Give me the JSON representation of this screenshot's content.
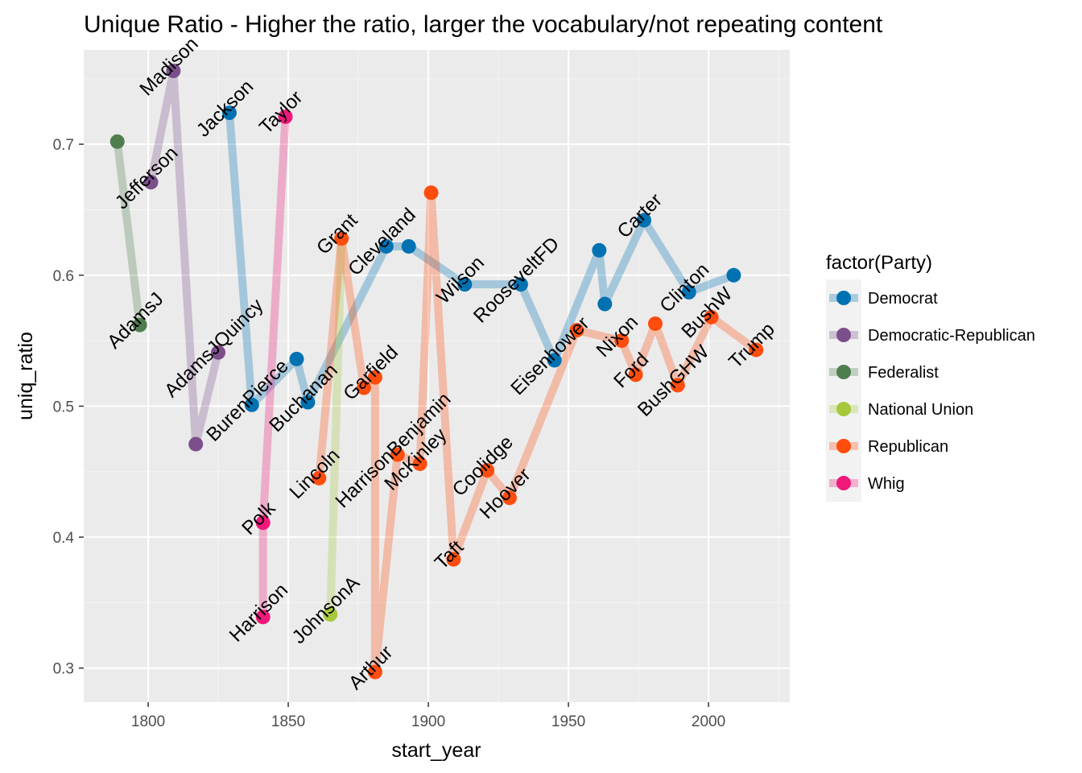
{
  "chart_data": {
    "type": "line",
    "title": "Unique Ratio - Higher the ratio, larger the vocabulary/not repeating content",
    "xlabel": "start_year",
    "ylabel": "uniq_ratio",
    "xlim": [
      1777,
      2029
    ],
    "ylim": [
      0.274,
      0.772
    ],
    "x_ticks": [
      1800,
      1850,
      1900,
      1950,
      2000
    ],
    "y_ticks": [
      0.3,
      0.4,
      0.5,
      0.6,
      0.7
    ],
    "x_tick_labels": [
      "1800",
      "1850",
      "1900",
      "1950",
      "2000"
    ],
    "y_tick_labels": [
      "0.3",
      "0.4",
      "0.5",
      "0.6",
      "0.7"
    ],
    "grid": true,
    "legend": {
      "title": "factor(Party)",
      "placement": "right",
      "entries": [
        "Democrat",
        "Democratic-Republican",
        "Federalist",
        "National Union",
        "Republican",
        "Whig"
      ]
    },
    "colors": {
      "Democrat": "#0072b2",
      "Democratic-Republican": "#7b4f8c",
      "Federalist": "#4e7d4e",
      "National Union": "#a6c83a",
      "Republican": "#ff4d0d",
      "Whig": "#f0187a"
    },
    "series": [
      {
        "name": "Democrat",
        "points": [
          {
            "x": 1829,
            "y": 0.724,
            "label": "Jackson"
          },
          {
            "x": 1837,
            "y": 0.501,
            "label": "BurenPierce"
          },
          {
            "x": 1853,
            "y": 0.536,
            "label": ""
          },
          {
            "x": 1857,
            "y": 0.503,
            "label": "Buchanan"
          },
          {
            "x": 1885,
            "y": 0.622,
            "label": "Cleveland"
          },
          {
            "x": 1893,
            "y": 0.622,
            "label": ""
          },
          {
            "x": 1913,
            "y": 0.593,
            "label": "Wilson"
          },
          {
            "x": 1933,
            "y": 0.593,
            "label": "RooseveltFD"
          },
          {
            "x": 1945,
            "y": 0.535,
            "label": "Eisenhower"
          },
          {
            "x": 1961,
            "y": 0.619,
            "label": ""
          },
          {
            "x": 1963,
            "y": 0.578,
            "label": ""
          },
          {
            "x": 1977,
            "y": 0.642,
            "label": "Carter"
          },
          {
            "x": 1993,
            "y": 0.587,
            "label": "Clinton"
          },
          {
            "x": 2009,
            "y": 0.6,
            "label": ""
          }
        ]
      },
      {
        "name": "Democratic-Republican",
        "points": [
          {
            "x": 1801,
            "y": 0.671,
            "label": "Jefferson"
          },
          {
            "x": 1809,
            "y": 0.756,
            "label": "Madison"
          },
          {
            "x": 1817,
            "y": 0.471,
            "label": ""
          },
          {
            "x": 1825,
            "y": 0.541,
            "label": "AdamsJQuincy"
          }
        ]
      },
      {
        "name": "Federalist",
        "points": [
          {
            "x": 1789,
            "y": 0.702,
            "label": ""
          },
          {
            "x": 1797,
            "y": 0.562,
            "label": "AdamsJ"
          }
        ]
      },
      {
        "name": "National Union",
        "points": [
          {
            "x": 1865,
            "y": 0.341,
            "label": "JohnsonA"
          },
          {
            "x": 1869,
            "y": 0.628,
            "label": ""
          }
        ]
      },
      {
        "name": "Republican",
        "points": [
          {
            "x": 1861,
            "y": 0.445,
            "label": "Lincoln"
          },
          {
            "x": 1869,
            "y": 0.628,
            "label": "Grant"
          },
          {
            "x": 1877,
            "y": 0.514,
            "label": ""
          },
          {
            "x": 1881,
            "y": 0.522,
            "label": "Garfield"
          },
          {
            "x": 1881,
            "y": 0.297,
            "label": "Arthur"
          },
          {
            "x": 1889,
            "y": 0.463,
            "label": "HarrisonBenjamin"
          },
          {
            "x": 1897,
            "y": 0.456,
            "label": "McKinley"
          },
          {
            "x": 1901,
            "y": 0.663,
            "label": ""
          },
          {
            "x": 1909,
            "y": 0.383,
            "label": "Taft"
          },
          {
            "x": 1921,
            "y": 0.451,
            "label": "Coolidge"
          },
          {
            "x": 1929,
            "y": 0.43,
            "label": "Hoover"
          },
          {
            "x": 1953,
            "y": 0.558,
            "label": ""
          },
          {
            "x": 1969,
            "y": 0.55,
            "label": "Nixon"
          },
          {
            "x": 1974,
            "y": 0.524,
            "label": "Ford"
          },
          {
            "x": 1981,
            "y": 0.563,
            "label": ""
          },
          {
            "x": 1989,
            "y": 0.516,
            "label": "BushGHW"
          },
          {
            "x": 2001,
            "y": 0.568,
            "label": "BushW"
          },
          {
            "x": 2017,
            "y": 0.543,
            "label": "Trump"
          }
        ]
      },
      {
        "name": "Whig",
        "points": [
          {
            "x": 1841,
            "y": 0.339,
            "label": "Harrison"
          },
          {
            "x": 1841,
            "y": 0.411,
            "label": "Polk"
          },
          {
            "x": 1849,
            "y": 0.721,
            "label": "Taylor"
          }
        ]
      }
    ]
  }
}
